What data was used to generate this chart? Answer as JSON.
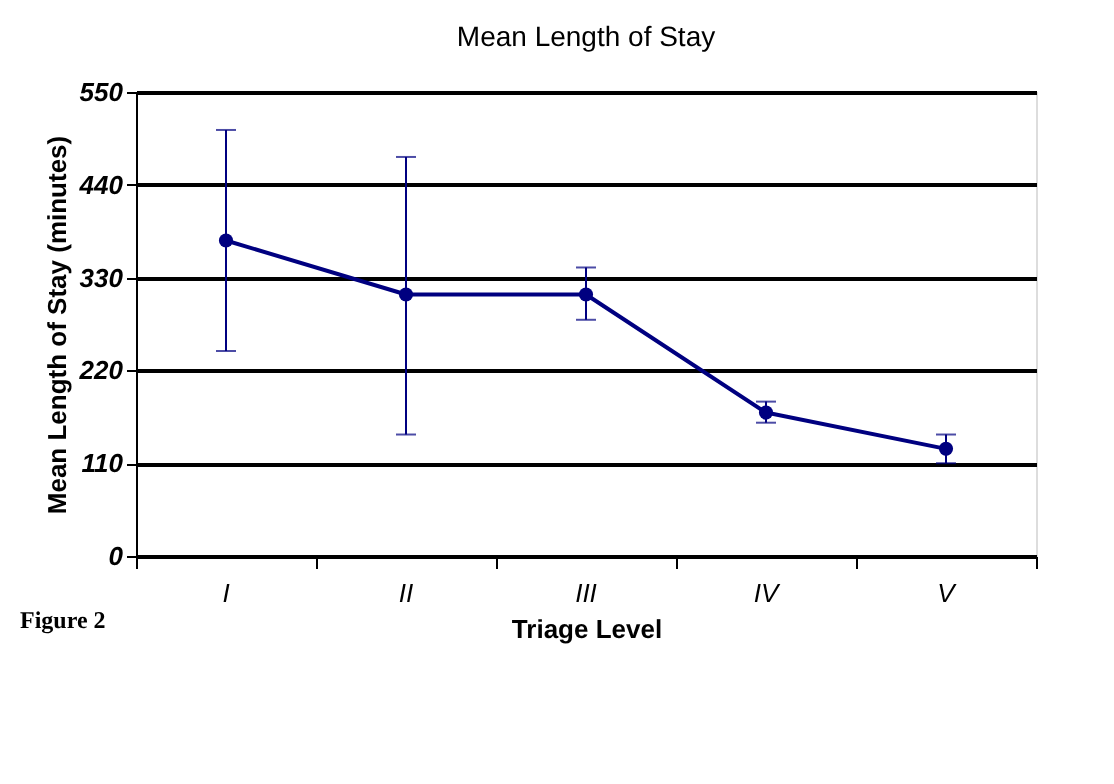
{
  "chart_data": {
    "type": "line",
    "title": "Mean Length of Stay",
    "xlabel": "Triage Level",
    "ylabel": "Mean Length of Stay (minutes)",
    "categories": [
      "I",
      "II",
      "III",
      "IV",
      "V"
    ],
    "series": [
      {
        "color": "#000080",
        "values": [
          374,
          310,
          310,
          170,
          127
        ],
        "errors": [
          [
            243,
            505
          ],
          [
            144,
            473
          ],
          [
            280,
            342
          ],
          [
            158,
            183
          ],
          [
            110,
            144
          ]
        ]
      }
    ],
    "ylim": [
      0,
      550
    ],
    "yticks": [
      0,
      110,
      220,
      330,
      440,
      550
    ],
    "grid": "y",
    "marker": "circle",
    "line_style": "solid",
    "legend": false,
    "annotations": [
      "Figure 2"
    ]
  }
}
